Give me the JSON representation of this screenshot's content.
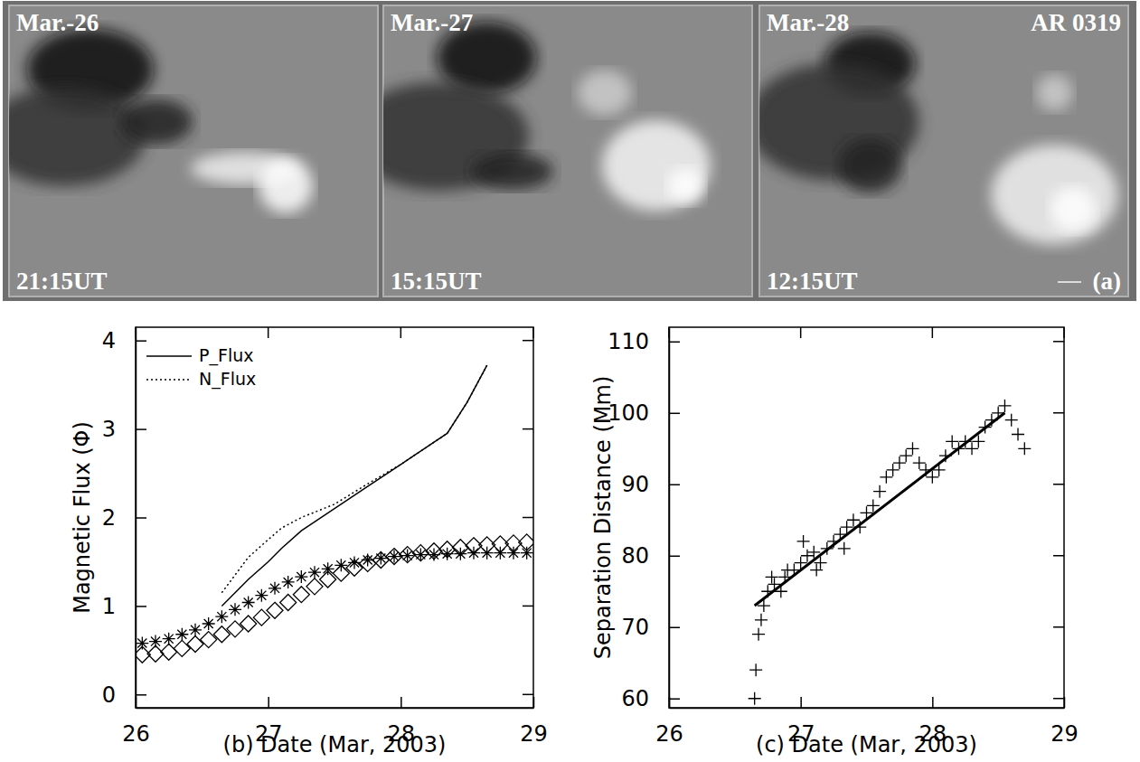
{
  "images": {
    "panels": [
      {
        "date": "Mar.-26",
        "time": "21:15UT"
      },
      {
        "date": "Mar.-27",
        "time": "15:15UT"
      },
      {
        "date": "Mar.-28",
        "time": "12:15UT"
      }
    ],
    "region": "AR 0319",
    "label": "(a)"
  },
  "chart_data": [
    {
      "type": "line",
      "x_label": "(b) Date (Mar, 2003)",
      "y_label": "Magnetic Flux (Φ)",
      "xlim": [
        26,
        29
      ],
      "xticks": [
        26,
        27,
        28,
        29
      ],
      "ylim": [
        -0.15,
        4.15
      ],
      "yticks": [
        0,
        1,
        2,
        3,
        4
      ],
      "legend": "top-left",
      "series": [
        {
          "name": "P_Flux",
          "type": "line",
          "line_style": "solid",
          "color": "#000000",
          "x": [
            26.65,
            26.75,
            26.85,
            27.0,
            27.1,
            27.25,
            27.5,
            27.75,
            28.0,
            28.2,
            28.35,
            28.5,
            28.65
          ],
          "values": [
            1.0,
            1.15,
            1.3,
            1.5,
            1.65,
            1.85,
            2.1,
            2.35,
            2.6,
            2.8,
            2.95,
            3.3,
            3.72
          ]
        },
        {
          "name": "N_Flux",
          "type": "line",
          "line_style": "dotted",
          "color": "#000000",
          "x": [
            26.65,
            26.75,
            26.85,
            27.0,
            27.1,
            27.25,
            27.5,
            27.75,
            28.0,
            28.2,
            28.35,
            28.5,
            28.65
          ],
          "values": [
            1.15,
            1.35,
            1.55,
            1.75,
            1.88,
            2.0,
            2.15,
            2.38,
            2.6,
            2.8,
            2.95,
            3.3,
            3.72
          ]
        },
        {
          "type": "scatter",
          "marker": "asterisk",
          "color": "#000000",
          "x": [
            26.05,
            26.15,
            26.25,
            26.35,
            26.45,
            26.55,
            26.65,
            26.75,
            26.85,
            26.95,
            27.05,
            27.15,
            27.25,
            27.35,
            27.45,
            27.55,
            27.65,
            27.75,
            27.85,
            27.95,
            28.05,
            28.15,
            28.25,
            28.35,
            28.45,
            28.55,
            28.65,
            28.75,
            28.85,
            28.95
          ],
          "values": [
            0.58,
            0.6,
            0.63,
            0.68,
            0.73,
            0.8,
            0.88,
            0.96,
            1.04,
            1.12,
            1.2,
            1.27,
            1.33,
            1.38,
            1.42,
            1.46,
            1.49,
            1.52,
            1.54,
            1.56,
            1.57,
            1.58,
            1.58,
            1.59,
            1.59,
            1.6,
            1.6,
            1.6,
            1.6,
            1.6
          ]
        },
        {
          "type": "scatter",
          "marker": "diamond",
          "color": "#000000",
          "x": [
            26.05,
            26.15,
            26.25,
            26.35,
            26.45,
            26.55,
            26.65,
            26.75,
            26.85,
            26.95,
            27.05,
            27.15,
            27.25,
            27.35,
            27.45,
            27.55,
            27.65,
            27.75,
            27.85,
            27.95,
            28.05,
            28.15,
            28.25,
            28.35,
            28.45,
            28.55,
            28.65,
            28.75,
            28.85,
            28.95
          ],
          "values": [
            0.45,
            0.46,
            0.48,
            0.52,
            0.57,
            0.62,
            0.68,
            0.74,
            0.8,
            0.87,
            0.95,
            1.04,
            1.13,
            1.22,
            1.3,
            1.37,
            1.43,
            1.48,
            1.52,
            1.56,
            1.58,
            1.6,
            1.62,
            1.64,
            1.66,
            1.68,
            1.69,
            1.7,
            1.71,
            1.72
          ]
        }
      ]
    },
    {
      "type": "scatter",
      "x_label": "(c) Date (Mar, 2003)",
      "y_label": "Separation Distance (Mm)",
      "xlim": [
        26,
        29
      ],
      "xticks": [
        26,
        27,
        28,
        29
      ],
      "ylim": [
        58.7,
        112
      ],
      "yticks": [
        60,
        70,
        80,
        90,
        100,
        110
      ],
      "series": [
        {
          "type": "scatter",
          "marker": "plus",
          "color": "#000000",
          "x": [
            26.65,
            26.66,
            26.68,
            26.7,
            26.72,
            26.75,
            26.78,
            26.8,
            26.85,
            26.88,
            26.9,
            26.95,
            27.0,
            27.02,
            27.05,
            27.1,
            27.12,
            27.15,
            27.2,
            27.25,
            27.3,
            27.33,
            27.35,
            27.4,
            27.45,
            27.5,
            27.55,
            27.6,
            27.65,
            27.7,
            27.75,
            27.8,
            27.85,
            27.9,
            27.95,
            28.0,
            28.05,
            28.1,
            28.15,
            28.2,
            28.25,
            28.3,
            28.35,
            28.4,
            28.45,
            28.5,
            28.55,
            28.6,
            28.65,
            28.7
          ],
          "values": [
            60,
            64,
            69,
            71,
            73,
            75,
            77,
            76,
            75,
            77,
            78,
            78,
            79,
            82,
            80,
            80.5,
            78,
            79,
            81,
            82,
            83,
            81,
            84,
            85,
            84,
            86,
            87,
            89,
            91,
            92,
            93,
            94,
            95,
            93,
            92,
            91,
            92,
            94,
            96,
            95,
            96,
            95,
            96,
            98,
            99,
            100,
            101,
            99,
            97,
            95
          ]
        },
        {
          "type": "line",
          "line_style": "solid",
          "color": "#000000",
          "x": [
            26.65,
            28.55
          ],
          "values": [
            73,
            100
          ]
        }
      ]
    }
  ]
}
